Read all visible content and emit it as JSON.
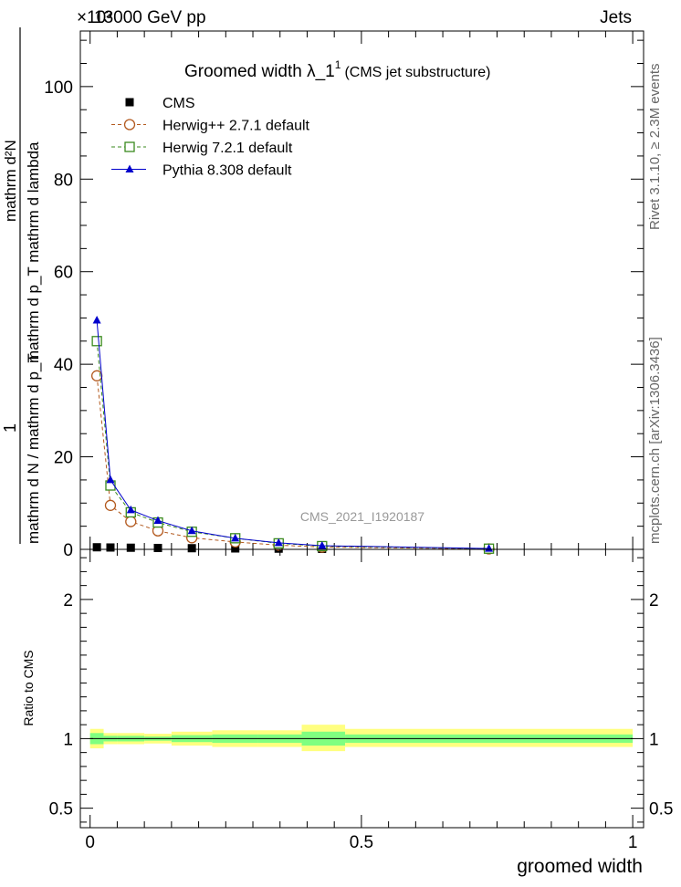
{
  "header": {
    "beam": "13000 GeV pp",
    "process": "Jets",
    "exponent": "×10³"
  },
  "side_labels": {
    "rivet": "Rivet 3.1.10, ≥ 2.3M events",
    "mcplots": "mcplots.cern.ch [arXiv:1306.3436]"
  },
  "watermark": "CMS_2021_I1920187",
  "colors": {
    "cms": "#000000",
    "herwigpp": "#b35a1f",
    "herwig7": "#3a8a1e",
    "pythia": "#0000cc",
    "band_outer": "#ffff80",
    "band_inner": "#80ff80"
  },
  "chart_data": [
    {
      "type": "line",
      "title": "Groomed width  λ_1¹ (CMS jet substructure)",
      "title_main": "Groomed width  λ_1",
      "title_sup": "1",
      "title_small": "(CMS jet substructure)",
      "ylabel_numerator": "mathrm d²N",
      "ylabel_denominator": "mathrm d p_T mathrm d lambda",
      "ylabel_outer_num": "1",
      "ylabel_outer_den": "mathrm d N / mathrm d p_T",
      "ylim": [
        0,
        112
      ],
      "y_scale_note": "×10³",
      "yticks": [
        0,
        20,
        40,
        60,
        80,
        100
      ],
      "xlim": [
        -0.018,
        1.02
      ],
      "legend_position": "top-left",
      "legend": [
        "CMS",
        "Herwig++ 2.7.1 default",
        "Herwig 7.2.1 default",
        "Pythia 8.308 default"
      ],
      "series": [
        {
          "name": "CMS",
          "marker": "square-filled",
          "x": [
            0.0125,
            0.0375,
            0.075,
            0.125,
            0.1875,
            0.2675,
            0.3475,
            0.4275,
            0.735
          ],
          "y": [
            0.45,
            0.4,
            0.35,
            0.3,
            0.25,
            0.2,
            0.15,
            0.1,
            0.05
          ]
        },
        {
          "name": "Herwig++ 2.7.1 default",
          "marker": "circle-open",
          "x": [
            0.0125,
            0.0375,
            0.075,
            0.125,
            0.1875,
            0.2675,
            0.3475,
            0.4275,
            0.735
          ],
          "y": [
            37.5,
            9.5,
            6.0,
            4.0,
            2.5,
            1.6,
            0.9,
            0.5,
            0.1
          ]
        },
        {
          "name": "Herwig 7.2.1 default",
          "marker": "square-open",
          "x": [
            0.0125,
            0.0375,
            0.075,
            0.125,
            0.1875,
            0.2675,
            0.3475,
            0.4275,
            0.735
          ],
          "y": [
            45.0,
            13.8,
            8.0,
            5.8,
            3.8,
            2.4,
            1.3,
            0.7,
            0.15
          ]
        },
        {
          "name": "Pythia 8.308 default",
          "marker": "triangle-filled",
          "x": [
            0.0125,
            0.0375,
            0.075,
            0.125,
            0.1875,
            0.2675,
            0.3475,
            0.4275,
            0.735
          ],
          "y": [
            49.5,
            15.0,
            8.5,
            6.2,
            4.0,
            2.4,
            1.4,
            0.8,
            0.18
          ]
        }
      ]
    },
    {
      "type": "line",
      "ylabel": "Ratio to CMS",
      "xlabel": "groomed width",
      "ylim": [
        0.36,
        2.36
      ],
      "yticks": [
        0.5,
        1,
        2
      ],
      "ytick_labels": [
        "0.5",
        "1",
        "2"
      ],
      "xticks": [
        0,
        0.5,
        1
      ],
      "xtick_labels": [
        "0",
        "0.5",
        "1"
      ],
      "xlim": [
        -0.018,
        1.02
      ],
      "bands": [
        {
          "x0": 0.0,
          "x1": 0.025,
          "outer": [
            0.93,
            1.07
          ],
          "inner": [
            0.96,
            1.04
          ]
        },
        {
          "x0": 0.025,
          "x1": 0.05,
          "outer": [
            0.96,
            1.04
          ],
          "inner": [
            0.98,
            1.02
          ]
        },
        {
          "x0": 0.05,
          "x1": 0.1,
          "outer": [
            0.96,
            1.04
          ],
          "inner": [
            0.98,
            1.02
          ]
        },
        {
          "x0": 0.1,
          "x1": 0.15,
          "outer": [
            0.965,
            1.035
          ],
          "inner": [
            0.985,
            1.015
          ]
        },
        {
          "x0": 0.15,
          "x1": 0.225,
          "outer": [
            0.95,
            1.05
          ],
          "inner": [
            0.975,
            1.025
          ]
        },
        {
          "x0": 0.225,
          "x1": 0.31,
          "outer": [
            0.94,
            1.06
          ],
          "inner": [
            0.97,
            1.03
          ]
        },
        {
          "x0": 0.31,
          "x1": 0.39,
          "outer": [
            0.94,
            1.06
          ],
          "inner": [
            0.97,
            1.03
          ]
        },
        {
          "x0": 0.39,
          "x1": 0.47,
          "outer": [
            0.91,
            1.1
          ],
          "inner": [
            0.95,
            1.05
          ]
        },
        {
          "x0": 0.47,
          "x1": 1.0,
          "outer": [
            0.94,
            1.07
          ],
          "inner": [
            0.97,
            1.03
          ]
        }
      ],
      "ratio_line": 1
    }
  ]
}
